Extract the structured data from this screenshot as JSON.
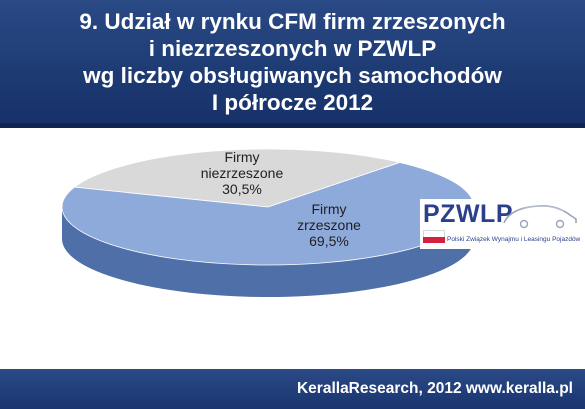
{
  "title": {
    "lines": [
      "9. Udział w rynku CFM firm zrzeszonych",
      "i niezrzeszonych w PZWLP",
      "wg liczby obsługiwanych samochodów",
      "I półrocze  2012"
    ]
  },
  "chart_data": {
    "type": "pie",
    "title": "9. Udział w rynku CFM firm zrzeszonych i niezrzeszonych w PZWLP wg liczby obsługiwanych samochodów I półrocze  2012",
    "slices": [
      {
        "label_lines": [
          "Firmy",
          "niezrzeszone",
          "30,5%"
        ],
        "value": 30.5,
        "color": "#d9d9d9",
        "side_color": "#a6a6a6"
      },
      {
        "label_lines": [
          "Firmy",
          "zrzeszone",
          "69,5%"
        ],
        "value": 69.5,
        "color": "#8eaadb",
        "side_color": "#4f6fa8"
      }
    ],
    "style": "3d"
  },
  "logo": {
    "name": "PZWLP",
    "subtitle": "Polski Związek Wynajmu i Leasingu Pojazdów"
  },
  "footer": {
    "credit": "KerallaResearch, 2012 www.keralla.pl"
  },
  "colors": {
    "header_bg": "#1d3a72",
    "footer_bg": "#1d3a72",
    "logo_blue": "#2b3f8c",
    "logo_red": "#d4213d"
  }
}
